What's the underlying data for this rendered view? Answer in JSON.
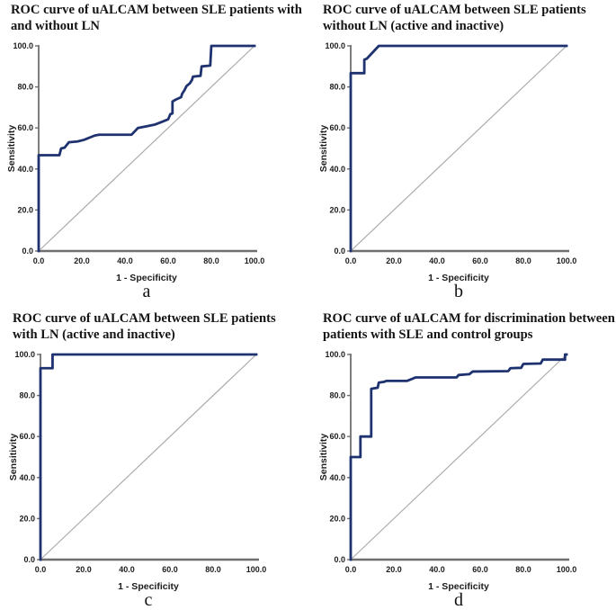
{
  "colors": {
    "curve": "#1f3270",
    "reference": "#ababab",
    "axis": "#6f6f6f",
    "tick_text": "#1c1c1c",
    "title_text": "#141414"
  },
  "chart_data": [
    {
      "type": "line",
      "panel_label": "a",
      "title": "ROC curve of uALCAM between SLE patients with\nand without LN",
      "xlabel": "1 - Specificity",
      "ylabel": "Sensitivity",
      "xlim": [
        0,
        100
      ],
      "ylim": [
        0,
        100
      ],
      "xtick_labels": [
        "0.0",
        "20.0",
        "40.0",
        "60.0",
        "80.0",
        "100.0"
      ],
      "ytick_labels": [
        "0.0",
        "20.0",
        "40.0",
        "60.0",
        "80.0",
        "100.0"
      ],
      "grid": false,
      "legend": false,
      "series": [
        {
          "name": "ROC curve",
          "color": "#1f3270",
          "points": [
            [
              0,
              0
            ],
            [
              0,
              46.7
            ],
            [
              9.6,
              46.7
            ],
            [
              10.4,
              50
            ],
            [
              12,
              50.4
            ],
            [
              14,
              53
            ],
            [
              18,
              53.4
            ],
            [
              21,
              54.2
            ],
            [
              26,
              56.3
            ],
            [
              28,
              56.7
            ],
            [
              43,
              56.7
            ],
            [
              44.5,
              58.3
            ],
            [
              46,
              60
            ],
            [
              50,
              60.8
            ],
            [
              54,
              61.7
            ],
            [
              57,
              62.9
            ],
            [
              60,
              64.2
            ],
            [
              61,
              66.7
            ],
            [
              62,
              67.1
            ],
            [
              62,
              72.9
            ],
            [
              63.5,
              73.8
            ],
            [
              66,
              75
            ],
            [
              66.5,
              76.7
            ],
            [
              67.5,
              78.3
            ],
            [
              68.5,
              80.4
            ],
            [
              70,
              81.7
            ],
            [
              71,
              83.3
            ],
            [
              71.5,
              85
            ],
            [
              75,
              85.4
            ],
            [
              75.5,
              90
            ],
            [
              79.5,
              90.4
            ],
            [
              80,
              100
            ],
            [
              100,
              100
            ]
          ]
        },
        {
          "name": "Reference line",
          "color": "#ababab",
          "points": [
            [
              0,
              0
            ],
            [
              100,
              100
            ]
          ]
        }
      ]
    },
    {
      "type": "line",
      "panel_label": "b",
      "title": "ROC curve of uALCAM between SLE patients\nwithout LN (active and inactive)",
      "xlabel": "1 - Specificity",
      "ylabel": "Sensitivity",
      "xlim": [
        0,
        100
      ],
      "ylim": [
        0,
        100
      ],
      "xtick_labels": [
        "0.0",
        "20.0",
        "40.0",
        "60.0",
        "80.0",
        "100.0"
      ],
      "ytick_labels": [
        "0.0",
        "20.0",
        "40.0",
        "60.0",
        "80.0",
        "100.0"
      ],
      "grid": false,
      "legend": false,
      "series": [
        {
          "name": "ROC curve",
          "color": "#1f3270",
          "points": [
            [
              0,
              0
            ],
            [
              0,
              86.7
            ],
            [
              6.3,
              86.7
            ],
            [
              6.3,
              93.3
            ],
            [
              7.5,
              93.8
            ],
            [
              13,
              100
            ],
            [
              100,
              100
            ]
          ]
        },
        {
          "name": "Reference line",
          "color": "#ababab",
          "points": [
            [
              0,
              0
            ],
            [
              100,
              100
            ]
          ]
        }
      ]
    },
    {
      "type": "line",
      "panel_label": "c",
      "title": "ROC curve of uALCAM between SLE patients\nwith LN (active and inactive)",
      "xlabel": "1 - Specificity",
      "ylabel": "Sensitivity",
      "xlim": [
        0,
        100
      ],
      "ylim": [
        0,
        100
      ],
      "xtick_labels": [
        "0.0",
        "20.0",
        "40.0",
        "60.0",
        "80.0",
        "100.0"
      ],
      "ytick_labels": [
        "0.0",
        "20.0",
        "40.0",
        "60.0",
        "80.0",
        "100.0"
      ],
      "grid": false,
      "legend": false,
      "series": [
        {
          "name": "ROC curve",
          "color": "#1f3270",
          "points": [
            [
              0,
              0
            ],
            [
              0,
              93.3
            ],
            [
              5.6,
              93.3
            ],
            [
              5.6,
              100
            ],
            [
              100,
              100
            ]
          ]
        },
        {
          "name": "Reference line",
          "color": "#ababab",
          "points": [
            [
              0,
              0
            ],
            [
              100,
              100
            ]
          ]
        }
      ]
    },
    {
      "type": "line",
      "panel_label": "d",
      "title": "ROC curve of uALCAM for discrimination between\npatients with SLE and control groups",
      "xlabel": "1 - Specificity",
      "ylabel": "Sensitivity",
      "xlim": [
        0,
        100
      ],
      "ylim": [
        0,
        100
      ],
      "xtick_labels": [
        "0.0",
        "20.0",
        "40.0",
        "60.0",
        "80.0",
        "100.0"
      ],
      "ytick_labels": [
        "0.0",
        "20.0",
        "40.0",
        "60.0",
        "80.0",
        "100.0"
      ],
      "grid": false,
      "legend": false,
      "series": [
        {
          "name": "ROC curve",
          "color": "#1f3270",
          "points": [
            [
              0,
              0
            ],
            [
              0,
              50
            ],
            [
              4.5,
              50
            ],
            [
              4.5,
              60
            ],
            [
              9.5,
              60
            ],
            [
              9.5,
              83.3
            ],
            [
              12.5,
              83.8
            ],
            [
              13,
              86.3
            ],
            [
              15.5,
              86.7
            ],
            [
              16.5,
              87.1
            ],
            [
              26,
              87.1
            ],
            [
              28,
              87.9
            ],
            [
              30,
              88.8
            ],
            [
              49,
              88.8
            ],
            [
              50,
              90
            ],
            [
              55,
              90.4
            ],
            [
              56.5,
              91.7
            ],
            [
              73,
              91.9
            ],
            [
              74,
              93.3
            ],
            [
              79,
              93.5
            ],
            [
              80,
              95.4
            ],
            [
              88,
              95.6
            ],
            [
              89,
              97.5
            ],
            [
              99.3,
              97.5
            ],
            [
              99.3,
              100
            ],
            [
              100,
              100
            ]
          ]
        },
        {
          "name": "Reference line",
          "color": "#ababab",
          "points": [
            [
              0,
              0
            ],
            [
              100,
              100
            ]
          ]
        }
      ]
    }
  ]
}
